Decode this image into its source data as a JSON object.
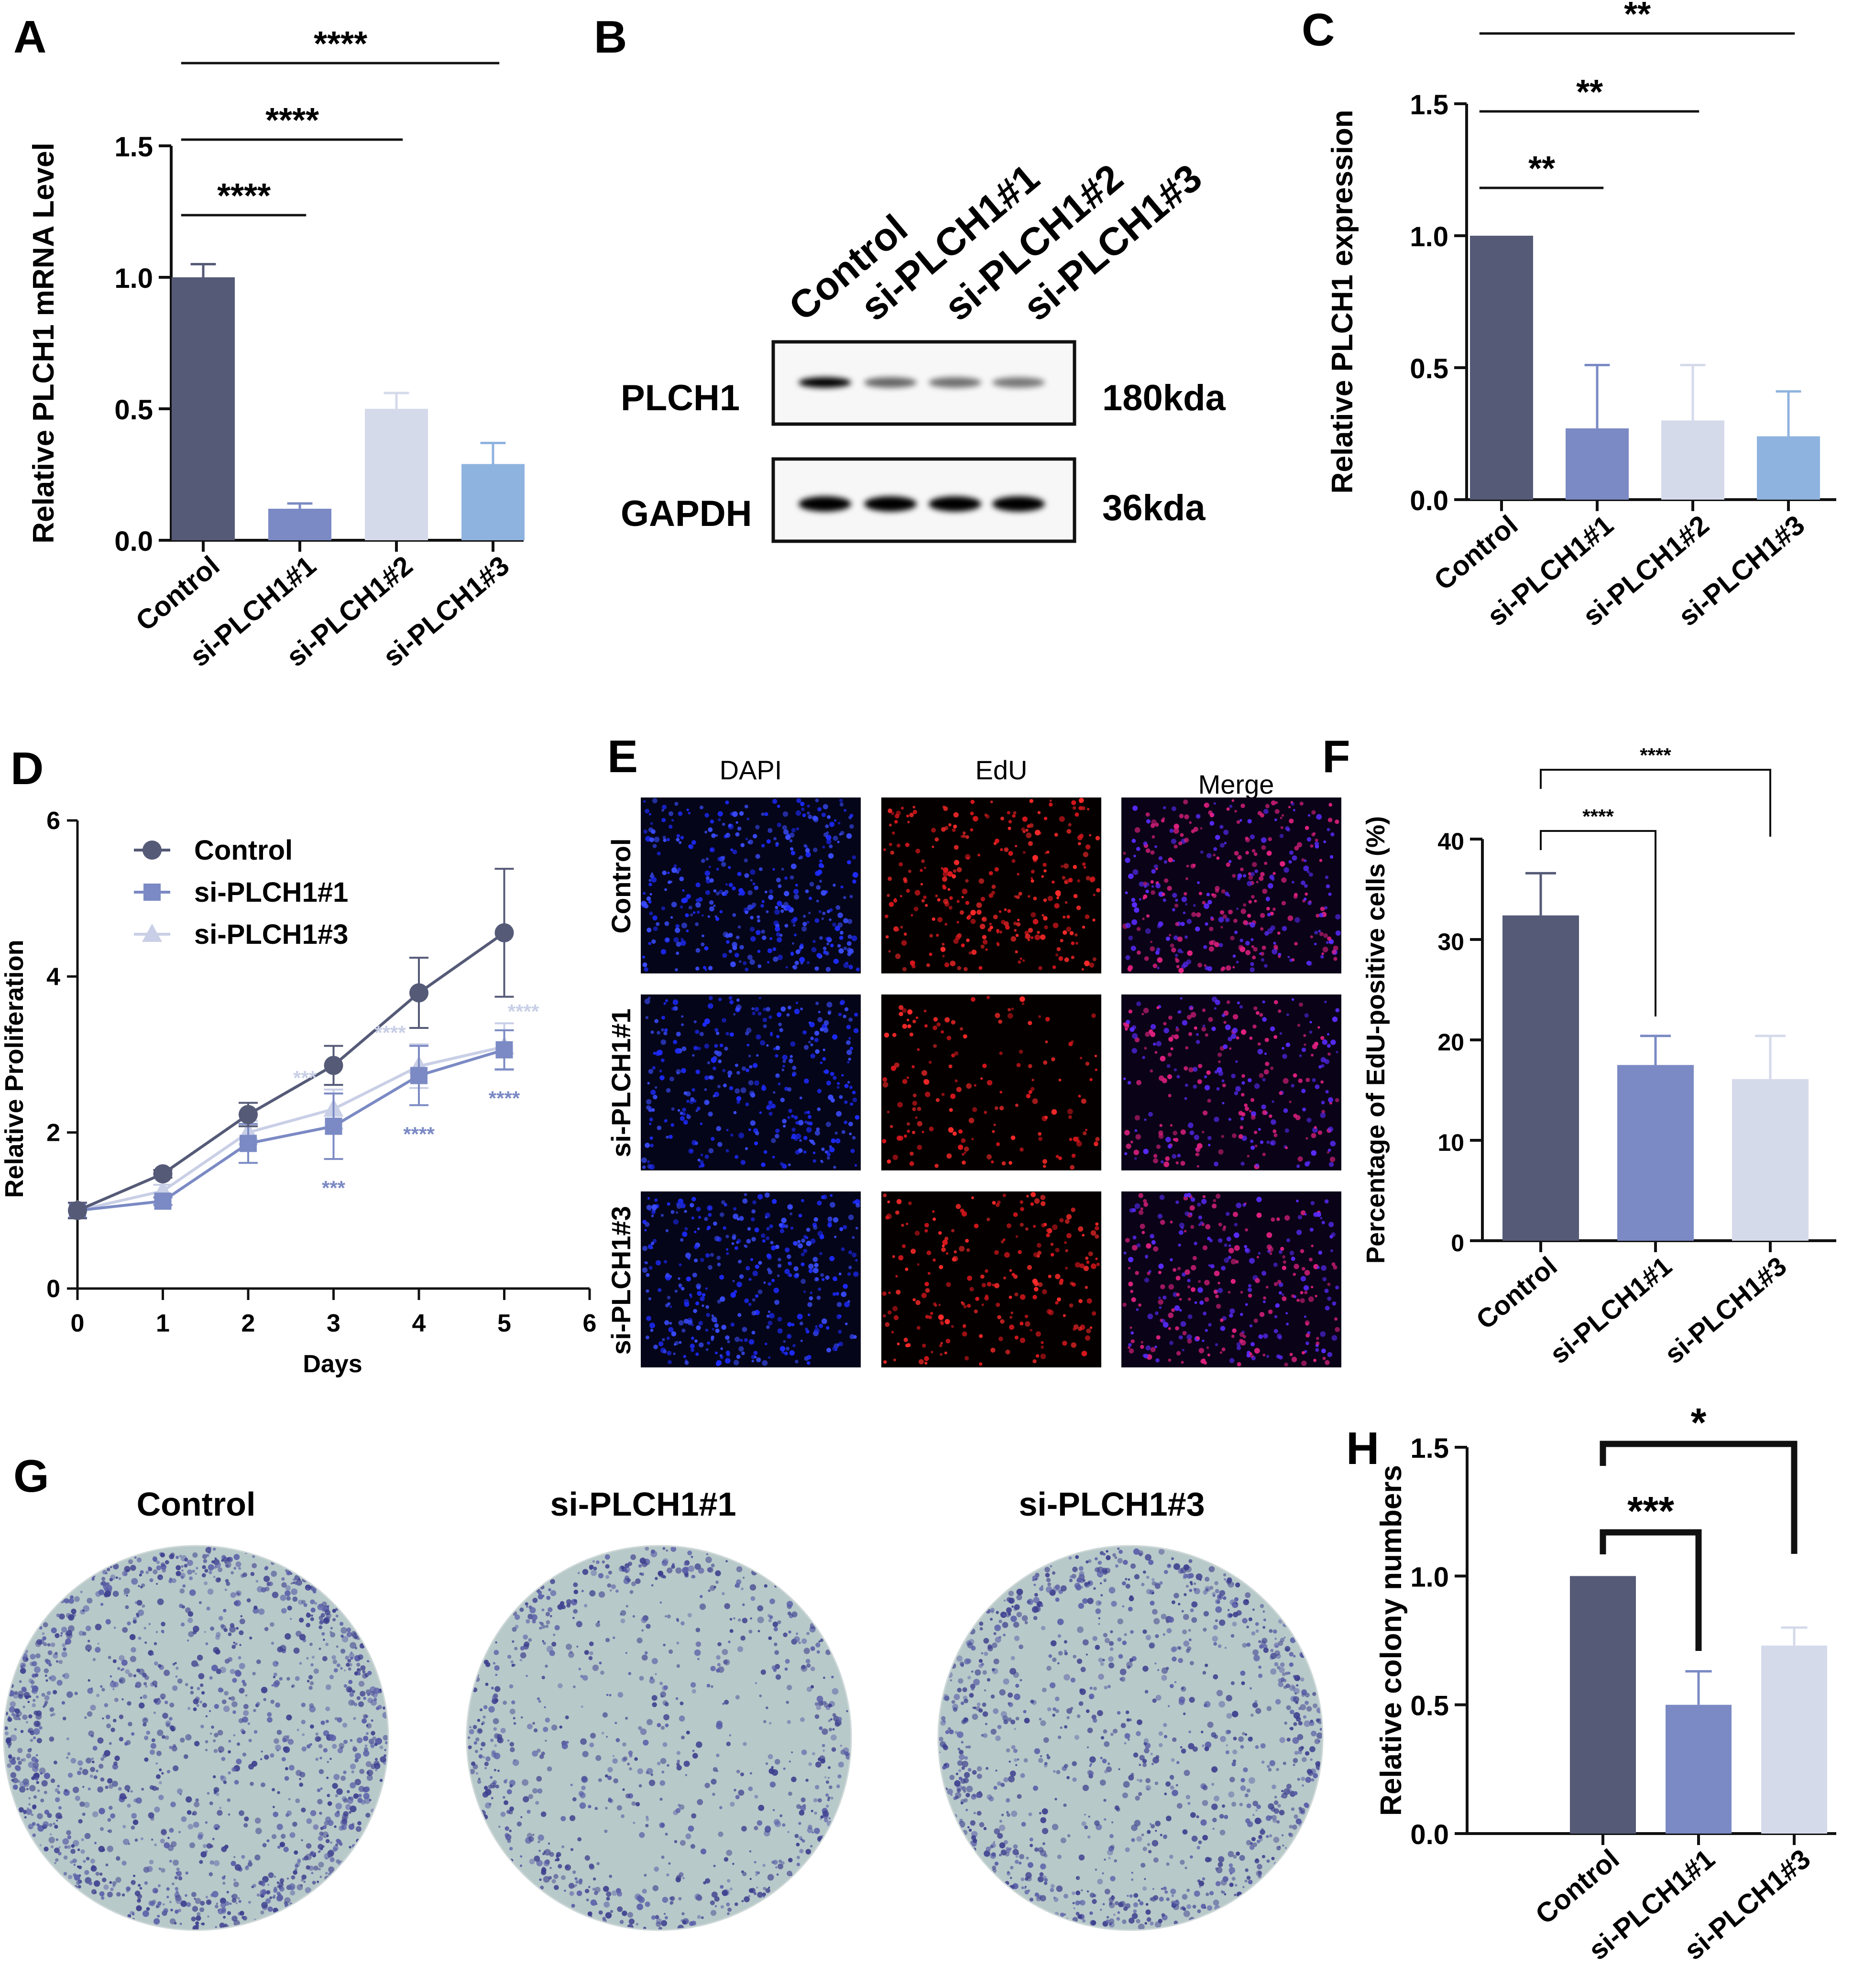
{
  "figure": {
    "panel_letters": [
      "A",
      "B",
      "C",
      "D",
      "E",
      "F",
      "G",
      "H"
    ]
  },
  "colors": {
    "control": "#555a77",
    "si1": "#7b8ac4",
    "si2": "#d5daeb",
    "si3": "#8fb3df",
    "si3_line": "#c9cfe6",
    "axis": "#111111"
  },
  "chart_data": [
    {
      "panel": "A",
      "type": "bar",
      "ylabel": "Relative PLCH1 mRNA Level",
      "categories": [
        "Control",
        "si-PLCH1#1",
        "si-PLCH1#2",
        "si-PLCH1#3"
      ],
      "values": [
        1.0,
        0.12,
        0.5,
        0.29
      ],
      "errors": [
        0.05,
        0.02,
        0.06,
        0.08
      ],
      "ylim": [
        0,
        1.5
      ],
      "yticks": [
        "0.0",
        "0.5",
        "1.0",
        "1.5"
      ],
      "significance": [
        {
          "from": 0,
          "to": 1,
          "label": "****"
        },
        {
          "from": 0,
          "to": 2,
          "label": "****"
        },
        {
          "from": 0,
          "to": 3,
          "label": "****"
        }
      ]
    },
    {
      "panel": "C",
      "type": "bar",
      "ylabel": "Relative PLCH1 expression",
      "categories": [
        "Control",
        "si-PLCH1#1",
        "si-PLCH1#2",
        "si-PLCH1#3"
      ],
      "values": [
        1.0,
        0.27,
        0.3,
        0.24
      ],
      "errors": [
        0.0,
        0.24,
        0.21,
        0.17
      ],
      "ylim": [
        0,
        1.5
      ],
      "yticks": [
        "0.0",
        "0.5",
        "1.0",
        "1.5"
      ],
      "significance": [
        {
          "from": 0,
          "to": 1,
          "label": "**"
        },
        {
          "from": 0,
          "to": 2,
          "label": "**"
        },
        {
          "from": 0,
          "to": 3,
          "label": "**"
        }
      ]
    },
    {
      "panel": "D",
      "type": "line",
      "xlabel": "Days",
      "ylabel": "Relative Proliferation",
      "x": [
        0,
        1,
        2,
        3,
        4,
        5
      ],
      "xlim": [
        0,
        6
      ],
      "ylim": [
        0,
        6
      ],
      "xticks": [
        "0",
        "1",
        "2",
        "3",
        "4",
        "5",
        "6"
      ],
      "yticks": [
        "0",
        "2",
        "4",
        "6"
      ],
      "legend_position": "top-left",
      "series": [
        {
          "name": "Control",
          "values": [
            1.0,
            1.47,
            2.23,
            2.86,
            3.79,
            4.56
          ],
          "errors": [
            0.1,
            0.05,
            0.15,
            0.25,
            0.45,
            0.82
          ]
        },
        {
          "name": "si-PLCH1#1",
          "values": [
            1.0,
            1.12,
            1.86,
            2.08,
            2.73,
            3.06
          ],
          "errors": [
            0.1,
            0.05,
            0.25,
            0.42,
            0.38,
            0.25
          ]
        },
        {
          "name": "si-PLCH1#3",
          "values": [
            1.0,
            1.25,
            2.0,
            2.3,
            2.85,
            3.1
          ],
          "errors": [
            0.1,
            0.08,
            0.15,
            0.25,
            0.28,
            0.3
          ]
        }
      ],
      "annotations": [
        {
          "x": 3,
          "label": "***",
          "series": "si-PLCH1#1",
          "position": "below"
        },
        {
          "x": 4,
          "label": "****",
          "series": "si-PLCH1#1",
          "position": "below"
        },
        {
          "x": 5,
          "label": "****",
          "series": "si-PLCH1#1",
          "position": "below"
        },
        {
          "x": 3,
          "label": "***",
          "series": "si-PLCH1#3",
          "position": "above"
        },
        {
          "x": 4,
          "label": "****",
          "series": "si-PLCH1#3",
          "position": "above"
        },
        {
          "x": 5,
          "label": "****",
          "series": "si-PLCH1#3",
          "position": "above"
        }
      ]
    },
    {
      "panel": "F",
      "type": "bar",
      "ylabel": "Percentage of EdU-positive cells (%)",
      "categories": [
        "Control",
        "si-PLCH1#1",
        "si-PLCH1#3"
      ],
      "values": [
        32.4,
        17.5,
        16.1
      ],
      "errors": [
        4.2,
        2.9,
        4.3
      ],
      "ylim": [
        0,
        40
      ],
      "yticks": [
        "0",
        "10",
        "20",
        "30",
        "40"
      ],
      "significance": [
        {
          "from": 0,
          "to": 1,
          "label": "****"
        },
        {
          "from": 0,
          "to": 2,
          "label": "****"
        }
      ]
    },
    {
      "panel": "H",
      "type": "bar",
      "ylabel": "Relative colony numbers",
      "categories": [
        "Control",
        "si-PLCH1#1",
        "si-PLCH1#3"
      ],
      "values": [
        1.0,
        0.5,
        0.73
      ],
      "errors": [
        0.0,
        0.13,
        0.07
      ],
      "ylim": [
        0,
        1.5
      ],
      "yticks": [
        "0.0",
        "0.5",
        "1.0",
        "1.5"
      ],
      "significance": [
        {
          "from": 0,
          "to": 1,
          "label": "***"
        },
        {
          "from": 0,
          "to": 2,
          "label": "*"
        }
      ]
    }
  ],
  "western_blot": {
    "lanes": [
      "Control",
      "si-PLCH1#1",
      "si-PLCH1#2",
      "si-PLCH1#3"
    ],
    "rows": [
      {
        "protein": "PLCH1",
        "size": "180kda",
        "band_intensity": [
          1.0,
          0.45,
          0.4,
          0.35
        ]
      },
      {
        "protein": "GAPDH",
        "size": "36kda",
        "band_intensity": [
          1.0,
          1.0,
          1.0,
          1.0
        ]
      }
    ]
  },
  "edu_panel": {
    "columns": [
      "DAPI",
      "EdU",
      "Merge"
    ],
    "rows": [
      "Control",
      "si-PLCH1#1",
      "si-PLCH1#3"
    ]
  },
  "colony_panel": {
    "labels": [
      "Control",
      "si-PLCH1#1",
      "si-PLCH1#3"
    ]
  }
}
